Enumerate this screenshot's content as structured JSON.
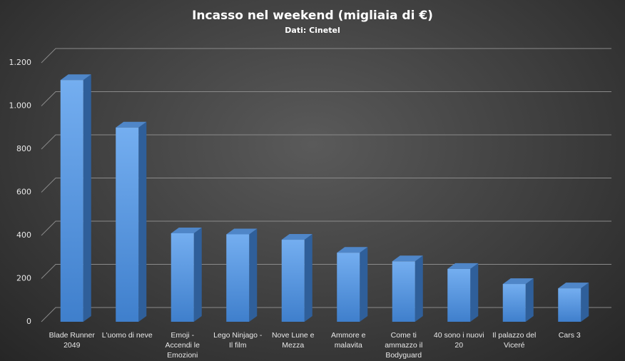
{
  "chart_data": {
    "type": "bar3d",
    "title": "Incasso nel weekend (migliaia di €)",
    "subtitle": "Dati: Cinetel",
    "categories": [
      "Blade Runner 2049",
      "L'uomo di neve",
      "Emoji - Accendi le Emozioni",
      "Lego Ninjago - Il film",
      "Nove Lune e Mezza",
      "Ammore e malavita",
      "Come ti ammazzo il Bodyguard",
      "40 sono i nuovi 20",
      "Il palazzo del Viceré",
      "Cars 3"
    ],
    "values": [
      1120,
      900,
      410,
      405,
      380,
      320,
      280,
      245,
      175,
      155
    ],
    "color": "#5b9be0",
    "ylim": [
      0,
      1200
    ],
    "yticks": [
      0,
      200,
      400,
      600,
      800,
      {
        "value": 1000,
        "label": "1.000"
      },
      {
        "value": 1200,
        "label": "1.200"
      }
    ],
    "grid": true
  }
}
